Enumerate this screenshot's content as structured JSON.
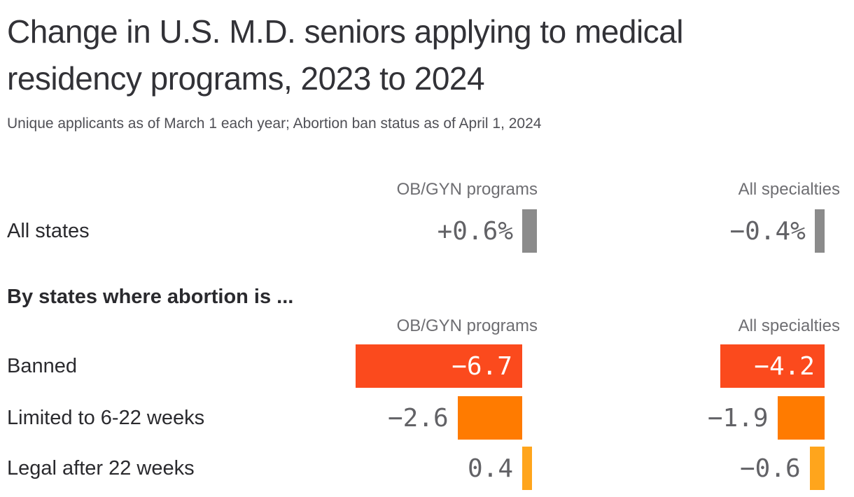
{
  "header": {
    "title": "Change in U.S. M.D. seniors applying to medical residency programs, 2023 to 2024",
    "subtitle": "Unique applicants as of March 1 each year; Abortion ban status as of April 1, 2024"
  },
  "colors": {
    "banned_bar": "#fb4a1d",
    "limited_bar": "#ff7b00",
    "legal_bar": "#ffa51c",
    "all_states_bar": "#8b8b8b",
    "value_text": "#626266",
    "value_text_inside": "#ffffff",
    "heading_text": "#323237",
    "muted_text": "#6e6e72"
  },
  "chart_data": {
    "type": "bar",
    "orientation": "horizontal",
    "unit": "percent change 2023 to 2024",
    "column_groups": [
      "OB/GYN programs",
      "All specialties"
    ],
    "legend_position": "none",
    "grid": false,
    "all_states": {
      "label": "All states",
      "values": {
        "obgyn": 0.6,
        "all_specialties": -0.4
      },
      "displays": {
        "obgyn": "+0.6%",
        "all_specialties": "−0.4%"
      },
      "bar_color": "#8b8b8b",
      "value_label_inside_bar": false
    },
    "by_ban_status": {
      "heading": "By states where abortion is ...",
      "rows": [
        {
          "label": "Banned",
          "bar_color": "#fb4a1d",
          "values": {
            "obgyn": -6.7,
            "all_specialties": -4.2
          },
          "displays": {
            "obgyn": "−6.7",
            "all_specialties": "−4.2"
          },
          "value_label_inside_bar": true
        },
        {
          "label": "Limited to 6-22 weeks",
          "bar_color": "#ff7b00",
          "values": {
            "obgyn": -2.6,
            "all_specialties": -1.9
          },
          "displays": {
            "obgyn": "−2.6",
            "all_specialties": "−1.9"
          },
          "value_label_inside_bar": false
        },
        {
          "label": "Legal after 22 weeks",
          "bar_color": "#ffa51c",
          "values": {
            "obgyn": 0.4,
            "all_specialties": -0.6
          },
          "displays": {
            "obgyn": "0.4",
            "all_specialties": "−0.6"
          },
          "value_label_inside_bar": false
        }
      ]
    }
  }
}
